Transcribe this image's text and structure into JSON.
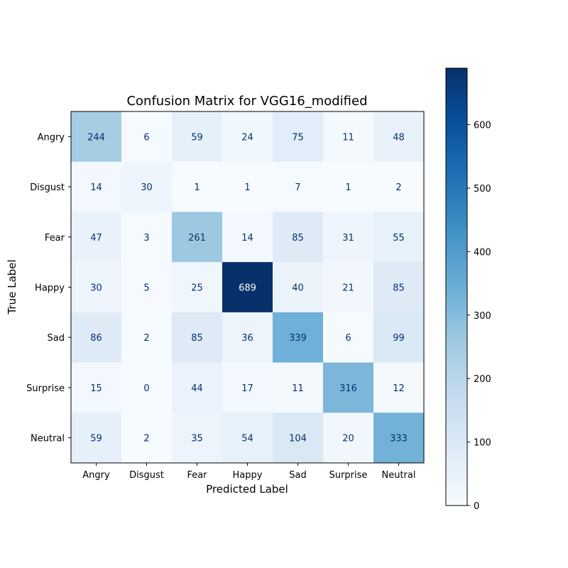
{
  "chart_data": {
    "type": "heatmap",
    "title": "Confusion Matrix for VGG16_modified",
    "xlabel": "Predicted Label",
    "ylabel": "True Label",
    "x_categories": [
      "Angry",
      "Disgust",
      "Fear",
      "Happy",
      "Sad",
      "Surprise",
      "Neutral"
    ],
    "y_categories": [
      "Angry",
      "Disgust",
      "Fear",
      "Happy",
      "Sad",
      "Surprise",
      "Neutral"
    ],
    "values": [
      [
        244,
        6,
        59,
        24,
        75,
        11,
        48
      ],
      [
        14,
        30,
        1,
        1,
        7,
        1,
        2
      ],
      [
        47,
        3,
        261,
        14,
        85,
        31,
        55
      ],
      [
        30,
        5,
        25,
        689,
        40,
        21,
        85
      ],
      [
        86,
        2,
        85,
        36,
        339,
        6,
        99
      ],
      [
        15,
        0,
        44,
        17,
        11,
        316,
        12
      ],
      [
        59,
        2,
        35,
        54,
        104,
        20,
        333
      ]
    ],
    "colormap": "Blues",
    "value_range": [
      0,
      689
    ],
    "colorbar": {
      "ticks": [
        0,
        100,
        200,
        300,
        400,
        500,
        600
      ],
      "tick_labels": [
        "0",
        "100",
        "200",
        "300",
        "400",
        "500",
        "600"
      ]
    },
    "grid": false
  }
}
